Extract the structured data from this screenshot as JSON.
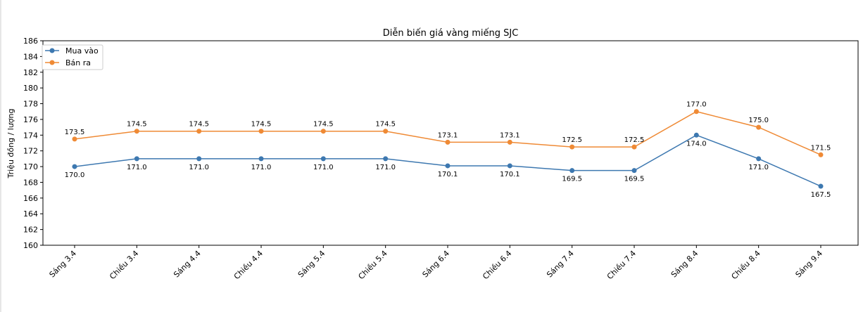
{
  "chart_data": {
    "type": "line",
    "title": "Diễn biến giá vàng miếng SJC",
    "xlabel": "",
    "ylabel": "Triệu đồng / lượng",
    "ylim": [
      160,
      186
    ],
    "yticks": [
      160,
      162,
      164,
      166,
      168,
      170,
      172,
      174,
      176,
      178,
      180,
      182,
      184,
      186
    ],
    "categories": [
      "Sáng 3.4",
      "Chiều 3.4",
      "Sáng 4.4",
      "Chiều 4.4",
      "Sáng 5.4",
      "Chiều 5.4",
      "Sáng 6.4",
      "Chiều 6.4",
      "Sáng 7.4",
      "Chiều 7.4",
      "Sáng 8.4",
      "Chiều 8.4",
      "Sáng 9.4"
    ],
    "legend_position": "top-left",
    "grid": false,
    "series": [
      {
        "name": "Mua vào",
        "color": "#3d78b0",
        "label_position": "below",
        "values": [
          170.0,
          171.0,
          171.0,
          171.0,
          171.0,
          171.0,
          170.1,
          170.1,
          169.5,
          169.5,
          174.0,
          171.0,
          167.5
        ]
      },
      {
        "name": "Bán ra",
        "color": "#ef8a35",
        "label_position": "above",
        "values": [
          173.5,
          174.5,
          174.5,
          174.5,
          174.5,
          174.5,
          173.1,
          173.1,
          172.5,
          172.5,
          177.0,
          175.0,
          171.5
        ]
      }
    ]
  }
}
